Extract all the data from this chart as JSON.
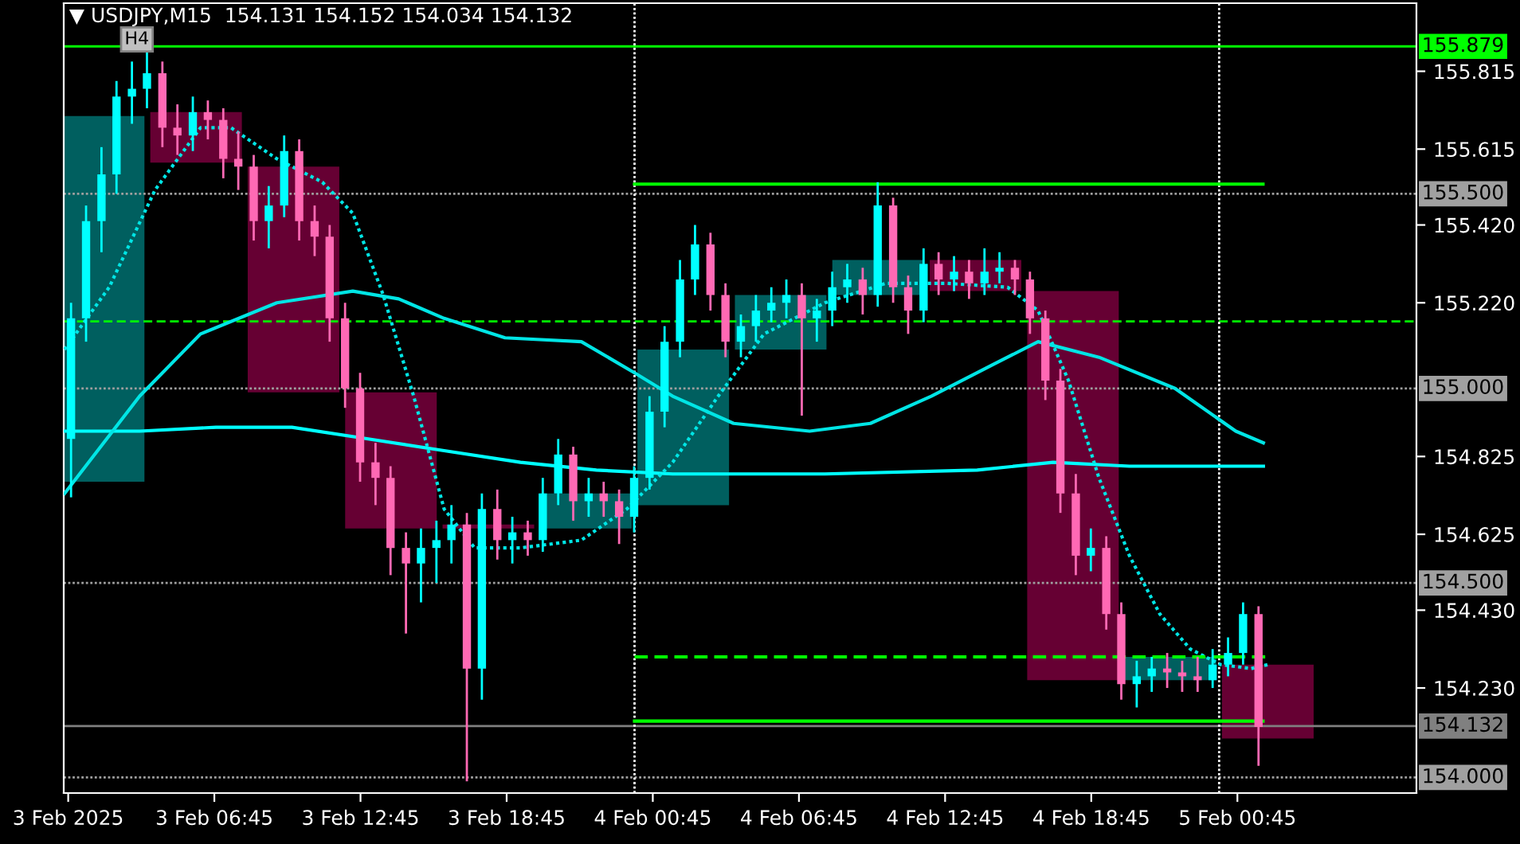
{
  "chart_data": {
    "type": "candlestick",
    "title": "▼ USDJPY,M15  154.131 154.152 154.034 154.132",
    "annotations": [
      "H4"
    ],
    "x": [
      "2025-02-03T00:52",
      "2025-02-03T01:29",
      "2025-02-03T02:07",
      "2025-02-03T02:44",
      "2025-02-03T03:22",
      "2025-02-03T03:59",
      "2025-02-03T04:37",
      "2025-02-03T05:14",
      "2025-02-03T05:52",
      "2025-02-03T06:29",
      "2025-02-03T07:07",
      "2025-02-03T07:44",
      "2025-02-03T08:22",
      "2025-02-03T08:59",
      "2025-02-03T09:37",
      "2025-02-03T10:14",
      "2025-02-03T10:52",
      "2025-02-03T11:29",
      "2025-02-03T12:07",
      "2025-02-03T12:44",
      "2025-02-03T13:22",
      "2025-02-03T13:59",
      "2025-02-03T14:37",
      "2025-02-03T15:14",
      "2025-02-03T15:52",
      "2025-02-03T16:29",
      "2025-02-03T17:07",
      "2025-02-03T17:44",
      "2025-02-03T18:22",
      "2025-02-03T18:59",
      "2025-02-03T19:37",
      "2025-02-03T20:14",
      "2025-02-03T20:52",
      "2025-02-03T21:29",
      "2025-02-03T22:07",
      "2025-02-03T22:44",
      "2025-02-03T23:22",
      "2025-02-03T23:59",
      "2025-02-04T00:37",
      "2025-02-04T01:14",
      "2025-02-04T01:52",
      "2025-02-04T02:29",
      "2025-02-04T03:07",
      "2025-02-04T03:44",
      "2025-02-04T04:22",
      "2025-02-04T04:59",
      "2025-02-04T05:37",
      "2025-02-04T06:14",
      "2025-02-04T06:52",
      "2025-02-04T07:29",
      "2025-02-04T08:07",
      "2025-02-04T08:44",
      "2025-02-04T09:22",
      "2025-02-04T09:59",
      "2025-02-04T10:37",
      "2025-02-04T11:14",
      "2025-02-04T11:52",
      "2025-02-04T12:29",
      "2025-02-04T13:07",
      "2025-02-04T13:44",
      "2025-02-04T14:22",
      "2025-02-04T14:59",
      "2025-02-04T15:37",
      "2025-02-04T16:14",
      "2025-02-04T16:52",
      "2025-02-04T17:29",
      "2025-02-04T18:07",
      "2025-02-04T18:44",
      "2025-02-04T19:22",
      "2025-02-04T19:59",
      "2025-02-04T20:37",
      "2025-02-04T21:14",
      "2025-02-04T21:52",
      "2025-02-04T22:29",
      "2025-02-04T23:07",
      "2025-02-04T23:44",
      "2025-02-05T00:22",
      "2025-02-05T00:59",
      "2025-02-05T01:37"
    ],
    "ohlc": [
      [
        154.87,
        155.22,
        154.72,
        155.18
      ],
      [
        155.18,
        155.47,
        155.12,
        155.43
      ],
      [
        155.43,
        155.62,
        155.35,
        155.55
      ],
      [
        155.55,
        155.79,
        155.5,
        155.75
      ],
      [
        155.75,
        155.84,
        155.68,
        155.77
      ],
      [
        155.77,
        155.87,
        155.72,
        155.81
      ],
      [
        155.81,
        155.84,
        155.62,
        155.67
      ],
      [
        155.67,
        155.73,
        155.6,
        155.65
      ],
      [
        155.65,
        155.75,
        155.61,
        155.71
      ],
      [
        155.71,
        155.74,
        155.64,
        155.69
      ],
      [
        155.69,
        155.72,
        155.54,
        155.59
      ],
      [
        155.59,
        155.66,
        155.51,
        155.57
      ],
      [
        155.57,
        155.6,
        155.38,
        155.43
      ],
      [
        155.43,
        155.52,
        155.36,
        155.47
      ],
      [
        155.47,
        155.65,
        155.44,
        155.61
      ],
      [
        155.61,
        155.64,
        155.38,
        155.43
      ],
      [
        155.43,
        155.47,
        155.34,
        155.39
      ],
      [
        155.39,
        155.42,
        155.12,
        155.18
      ],
      [
        155.18,
        155.22,
        154.95,
        155.0
      ],
      [
        155.0,
        155.04,
        154.76,
        154.81
      ],
      [
        154.81,
        154.86,
        154.7,
        154.77
      ],
      [
        154.77,
        154.8,
        154.52,
        154.59
      ],
      [
        154.59,
        154.63,
        154.37,
        154.55
      ],
      [
        154.55,
        154.64,
        154.45,
        154.59
      ],
      [
        154.59,
        154.66,
        154.5,
        154.61
      ],
      [
        154.61,
        154.7,
        154.55,
        154.65
      ],
      [
        154.65,
        154.68,
        153.99,
        154.28
      ],
      [
        154.28,
        154.73,
        154.2,
        154.69
      ],
      [
        154.69,
        154.74,
        154.56,
        154.61
      ],
      [
        154.61,
        154.67,
        154.55,
        154.63
      ],
      [
        154.63,
        154.66,
        154.57,
        154.61
      ],
      [
        154.61,
        154.77,
        154.58,
        154.73
      ],
      [
        154.73,
        154.87,
        154.7,
        154.83
      ],
      [
        154.83,
        154.85,
        154.66,
        154.71
      ],
      [
        154.71,
        154.77,
        154.67,
        154.73
      ],
      [
        154.73,
        154.76,
        154.67,
        154.71
      ],
      [
        154.71,
        154.74,
        154.6,
        154.67
      ],
      [
        154.67,
        154.8,
        154.63,
        154.77
      ],
      [
        154.77,
        154.98,
        154.74,
        154.94
      ],
      [
        154.94,
        155.16,
        154.9,
        155.12
      ],
      [
        155.12,
        155.33,
        155.08,
        155.28
      ],
      [
        155.28,
        155.42,
        155.24,
        155.37
      ],
      [
        155.37,
        155.4,
        155.2,
        155.24
      ],
      [
        155.24,
        155.27,
        155.08,
        155.12
      ],
      [
        155.12,
        155.19,
        155.08,
        155.16
      ],
      [
        155.16,
        155.24,
        155.12,
        155.2
      ],
      [
        155.2,
        155.26,
        155.17,
        155.22
      ],
      [
        155.22,
        155.28,
        155.18,
        155.24
      ],
      [
        155.24,
        155.27,
        154.93,
        155.18
      ],
      [
        155.18,
        155.23,
        155.12,
        155.2
      ],
      [
        155.2,
        155.3,
        155.16,
        155.26
      ],
      [
        155.26,
        155.32,
        155.22,
        155.28
      ],
      [
        155.28,
        155.31,
        155.19,
        155.24
      ],
      [
        155.24,
        155.53,
        155.21,
        155.47
      ],
      [
        155.47,
        155.49,
        155.22,
        155.26
      ],
      [
        155.26,
        155.29,
        155.14,
        155.2
      ],
      [
        155.2,
        155.36,
        155.17,
        155.32
      ],
      [
        155.32,
        155.35,
        155.24,
        155.28
      ],
      [
        155.28,
        155.34,
        155.25,
        155.3
      ],
      [
        155.3,
        155.33,
        155.23,
        155.27
      ],
      [
        155.27,
        155.36,
        155.24,
        155.3
      ],
      [
        155.3,
        155.35,
        155.27,
        155.31
      ],
      [
        155.31,
        155.33,
        155.24,
        155.28
      ],
      [
        155.28,
        155.3,
        155.14,
        155.18
      ],
      [
        155.18,
        155.2,
        154.97,
        155.02
      ],
      [
        155.02,
        155.05,
        154.68,
        154.73
      ],
      [
        154.73,
        154.78,
        154.52,
        154.57
      ],
      [
        154.57,
        154.64,
        154.53,
        154.59
      ],
      [
        154.59,
        154.62,
        154.38,
        154.42
      ],
      [
        154.42,
        154.45,
        154.2,
        154.24
      ],
      [
        154.24,
        154.3,
        154.18,
        154.26
      ],
      [
        154.26,
        154.31,
        154.22,
        154.28
      ],
      [
        154.28,
        154.32,
        154.23,
        154.27
      ],
      [
        154.27,
        154.3,
        154.22,
        154.26
      ],
      [
        154.26,
        154.31,
        154.22,
        154.25
      ],
      [
        154.25,
        154.33,
        154.23,
        154.29
      ],
      [
        154.29,
        154.36,
        154.26,
        154.32
      ],
      [
        154.32,
        154.45,
        154.29,
        154.42
      ],
      [
        154.42,
        154.44,
        154.03,
        154.13
      ]
    ],
    "colors": [
      "#00ffff",
      "#00ffff",
      "#00ffff",
      "#00ffff",
      "#00ffff",
      "#00ffff",
      "#ff69b4",
      "#ff69b4",
      "#00ffff",
      "#ff69b4",
      "#ff69b4",
      "#ff69b4",
      "#ff69b4",
      "#00ffff",
      "#00ffff",
      "#ff69b4",
      "#ff69b4",
      "#ff69b4",
      "#ff69b4",
      "#ff69b4",
      "#ff69b4",
      "#ff69b4",
      "#ff69b4",
      "#00ffff",
      "#00ffff",
      "#00ffff",
      "#ff69b4",
      "#00ffff",
      "#ff69b4",
      "#00ffff",
      "#ff69b4",
      "#00ffff",
      "#00ffff",
      "#ff69b4",
      "#00ffff",
      "#ff69b4",
      "#ff69b4",
      "#00ffff",
      "#00ffff",
      "#00ffff",
      "#00ffff",
      "#00ffff",
      "#ff69b4",
      "#ff69b4",
      "#00ffff",
      "#00ffff",
      "#00ffff",
      "#00ffff",
      "#ff69b4",
      "#00ffff",
      "#00ffff",
      "#00ffff",
      "#ff69b4",
      "#00ffff",
      "#ff69b4",
      "#ff69b4",
      "#00ffff",
      "#ff69b4",
      "#00ffff",
      "#ff69b4",
      "#00ffff",
      "#00ffff",
      "#ff69b4",
      "#ff69b4",
      "#ff69b4",
      "#ff69b4",
      "#ff69b4",
      "#00ffff",
      "#ff69b4",
      "#ff69b4",
      "#00ffff",
      "#00ffff",
      "#ff69b4",
      "#ff69b4",
      "#ff69b4",
      "#00ffff",
      "#00ffff",
      "#00ffff",
      "#ff69b4"
    ],
    "series": [
      {
        "type": "bar",
        "x": [
          "2025-02-03T02:00",
          "2025-02-03T06:00",
          "2025-02-03T10:00",
          "2025-02-03T14:00",
          "2025-02-03T18:00",
          "2025-02-03T22:00",
          "2025-02-04T02:00",
          "2025-02-04T06:00",
          "2025-02-04T10:00",
          "2025-02-04T14:00",
          "2025-02-04T18:00",
          "2025-02-04T22:00",
          "2025-02-05T02:00"
        ],
        "base": [
          154.76,
          155.58,
          154.99,
          154.64,
          154.64,
          154.64,
          154.7,
          155.1,
          155.24,
          155.25,
          154.25,
          154.25,
          154.1
        ],
        "values": [
          0.94,
          0.13,
          0.58,
          0.35,
          0.01,
          0.09,
          0.4,
          0.14,
          0.09,
          0.08,
          1.0,
          0.06,
          0.19
        ],
        "colors": [
          "#005f5f",
          "#660033",
          "#660033",
          "#660033",
          "#660033",
          "#005f5f",
          "#005f5f",
          "#005f5f",
          "#005f5f",
          "#660033",
          "#660033",
          "#005f5f",
          "#660033"
        ]
      },
      {
        "type": "line",
        "color": "#00ffff",
        "x": [
          "2025-02-03T00:36",
          "2025-02-03T03:41",
          "2025-02-03T06:49",
          "2025-02-03T09:56",
          "2025-02-03T13:04",
          "2025-02-03T16:11",
          "2025-02-03T19:19",
          "2025-02-03T22:26",
          "2025-02-04T01:34",
          "2025-02-04T07:49",
          "2025-02-04T14:04",
          "2025-02-04T17:11",
          "2025-02-04T20:19",
          "2025-02-05T01:49"
        ],
        "values": [
          154.89,
          154.89,
          154.9,
          154.9,
          154.87,
          154.84,
          154.81,
          154.79,
          154.78,
          154.78,
          154.79,
          154.81,
          154.8,
          154.8
        ]
      },
      {
        "type": "line",
        "color": "#00e5e5",
        "x": [
          "2025-02-03T00:36",
          "2025-02-03T03:41",
          "2025-02-03T06:11",
          "2025-02-03T09:19",
          "2025-02-03T12:26",
          "2025-02-03T14:19",
          "2025-02-03T16:11",
          "2025-02-03T18:41",
          "2025-02-03T21:49",
          "2025-02-04T00:00",
          "2025-02-04T01:34",
          "2025-02-04T04:04",
          "2025-02-04T07:11",
          "2025-02-04T09:41",
          "2025-02-04T12:11",
          "2025-02-04T14:41",
          "2025-02-04T16:34",
          "2025-02-04T19:04",
          "2025-02-04T22:11",
          "2025-02-05T00:41",
          "2025-02-05T01:49"
        ],
        "values": [
          154.73,
          154.98,
          155.14,
          155.22,
          155.25,
          155.23,
          155.18,
          155.13,
          155.12,
          155.04,
          154.98,
          154.91,
          154.89,
          154.91,
          154.98,
          155.06,
          155.12,
          155.08,
          155.0,
          154.89,
          154.86
        ]
      },
      {
        "type": "line",
        "color": "#00e5e5",
        "line_style": "dotted",
        "x": [
          "2025-02-03T00:36",
          "2025-02-03T02:26",
          "2025-02-03T04:19",
          "2025-02-03T06:11",
          "2025-02-03T07:26",
          "2025-02-03T09:19",
          "2025-02-03T11:11",
          "2025-02-03T12:26",
          "2025-02-03T13:41",
          "2025-02-03T14:56",
          "2025-02-03T16:11",
          "2025-02-03T17:26",
          "2025-02-03T19:19",
          "2025-02-03T21:49",
          "2025-02-03T23:41",
          "2025-02-04T01:34",
          "2025-02-04T03:26",
          "2025-02-04T05:19",
          "2025-02-04T07:49",
          "2025-02-04T10:19",
          "2025-02-04T12:49",
          "2025-02-04T15:19",
          "2025-02-04T16:34",
          "2025-02-04T17:49",
          "2025-02-04T19:04",
          "2025-02-04T20:19",
          "2025-02-04T21:34",
          "2025-02-04T22:49",
          "2025-02-05T00:04",
          "2025-02-05T01:19",
          "2025-02-05T02:00"
        ],
        "values": [
          155.1,
          155.26,
          155.51,
          155.67,
          155.67,
          155.59,
          155.53,
          155.45,
          155.24,
          154.98,
          154.69,
          154.59,
          154.59,
          154.61,
          154.69,
          154.81,
          154.98,
          155.14,
          155.22,
          155.27,
          155.27,
          155.26,
          155.2,
          155.02,
          154.77,
          154.57,
          154.42,
          154.33,
          154.29,
          154.28,
          154.29
        ]
      },
      {
        "type": "line",
        "color": "#00ff00",
        "x": [
          "2025-02-04T00:00",
          "2025-02-05T01:48"
        ],
        "values": [
          155.525,
          155.525
        ]
      },
      {
        "type": "line",
        "color": "#00ff00",
        "x": [
          "2025-02-04T00:00",
          "2025-02-05T01:48"
        ],
        "values": [
          154.145,
          154.145
        ]
      },
      {
        "type": "line",
        "color": "#00ff00",
        "line_style": "dashed",
        "x": [
          "2025-02-04T00:00",
          "2025-02-05T02:00"
        ],
        "values": [
          154.31,
          154.31
        ]
      }
    ],
    "ref_lines": [
      {
        "axis": "y",
        "value": 155.879,
        "label": "155.879",
        "color": "#00ff00",
        "line_style": "solid"
      },
      {
        "axis": "y",
        "value": 155.5,
        "label": "155.500",
        "color": "#a0a0a0",
        "line_style": "dotted"
      },
      {
        "axis": "y",
        "value": 155.0,
        "label": "155.000",
        "color": "#a0a0a0",
        "line_style": "dotted"
      },
      {
        "axis": "y",
        "value": 154.5,
        "label": "154.500",
        "color": "#a0a0a0",
        "line_style": "dotted"
      },
      {
        "axis": "y",
        "value": 154.132,
        "label": "154.132",
        "color": "#808080",
        "line_style": "solid"
      },
      {
        "axis": "y",
        "value": 154.0,
        "label": "154.000",
        "color": "#a0a0a0",
        "line_style": "dotted"
      },
      {
        "axis": "y",
        "value": 155.172,
        "color": "#00ff00",
        "line_style": "dashed"
      },
      {
        "axis": "x",
        "value": "2025-02-04T00:00",
        "color": "#ffffff",
        "line_style": "dotted"
      },
      {
        "axis": "x",
        "value": "2025-02-05T00:00",
        "color": "#ffffff",
        "line_style": "dotted"
      }
    ],
    "xlim": [
      "2025-02-03T00:34",
      "2025-02-05T08:06"
    ],
    "xticks": [
      {
        "value": "2025-02-03T00:45",
        "label": "3 Feb 2025"
      },
      {
        "value": "2025-02-03T06:45",
        "label": "3 Feb 06:45"
      },
      {
        "value": "2025-02-03T12:45",
        "label": "3 Feb 12:45"
      },
      {
        "value": "2025-02-03T18:45",
        "label": "3 Feb 18:45"
      },
      {
        "value": "2025-02-04T00:45",
        "label": "4 Feb 00:45"
      },
      {
        "value": "2025-02-04T06:45",
        "label": "4 Feb 06:45"
      },
      {
        "value": "2025-02-04T12:45",
        "label": "4 Feb 12:45"
      },
      {
        "value": "2025-02-04T18:45",
        "label": "4 Feb 18:45"
      },
      {
        "value": "2025-02-05T00:45",
        "label": "5 Feb 00:45"
      }
    ],
    "ylim": [
      153.96,
      155.99
    ],
    "yticks": [
      155.815,
      155.615,
      {
        "value": 155.42,
        "label": "155.420"
      },
      {
        "value": 155.22,
        "label": "155.220"
      },
      154.825,
      154.625,
      {
        "value": 154.43,
        "label": "154.430"
      },
      {
        "value": 154.23,
        "label": "154.230"
      }
    ],
    "grid": false,
    "legend": false
  }
}
